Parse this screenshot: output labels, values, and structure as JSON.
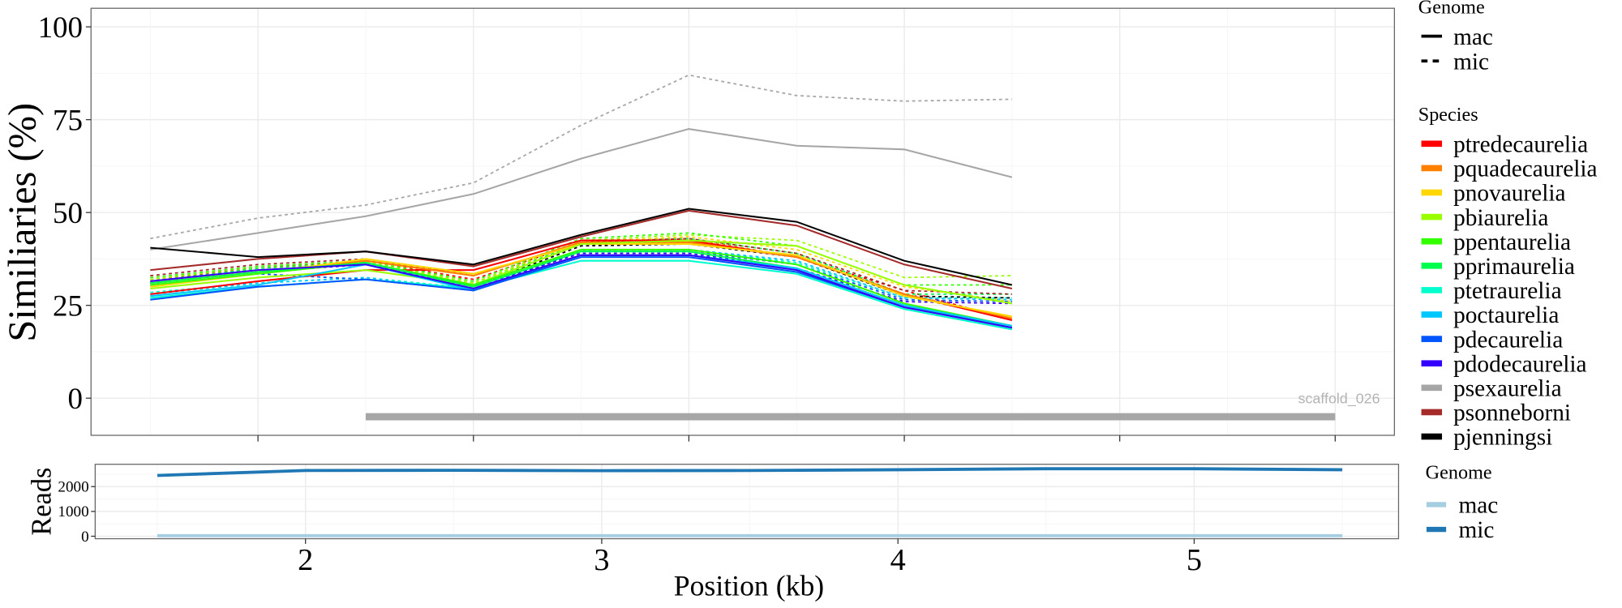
{
  "chart_data": [
    {
      "type": "line",
      "title": "",
      "xlabel": "",
      "ylabel": "Similiaries (%)",
      "ylim": [
        -10,
        105
      ],
      "xlim": [
        0.45,
        12.55
      ],
      "yticks": [
        "0",
        "25",
        "50",
        "75",
        "100"
      ],
      "ytick_values": [
        0,
        25,
        50,
        75,
        100
      ],
      "xtick_values": [
        2,
        4,
        6,
        8,
        10,
        12
      ],
      "grid": true,
      "x": [
        1,
        2,
        3,
        4,
        5,
        6,
        7,
        8,
        9
      ],
      "annotation": {
        "text": "scaffold_026",
        "bar_from": 3,
        "bar_to": 12,
        "bar_y": -5,
        "color": "#A6A6A6"
      },
      "species": [
        {
          "name": "ptredecaurelia",
          "color": "#FF0000",
          "mac": [
            28,
            31.5,
            34.5,
            34.5,
            42.5,
            42.5,
            38,
            28,
            21
          ],
          "mic": [
            32,
            35,
            37,
            32,
            42,
            42,
            38,
            29,
            21
          ]
        },
        {
          "name": "pquadecaurelia",
          "color": "#FF7F00",
          "mac": [
            31,
            34,
            37,
            33,
            42,
            42,
            38,
            28,
            21.5
          ],
          "mic": [
            31.5,
            35,
            36.5,
            31,
            42.5,
            43,
            38,
            27.5,
            21.5
          ]
        },
        {
          "name": "pnovaurelia",
          "color": "#FFD700",
          "mac": [
            30,
            33.5,
            37.5,
            33.5,
            41.5,
            41.5,
            38.5,
            27.5,
            22
          ],
          "mic": [
            31,
            34.5,
            36.5,
            31,
            42,
            43.5,
            40,
            30,
            26
          ]
        },
        {
          "name": "pbiaurelia",
          "color": "#99FF00",
          "mac": [
            29.5,
            32.5,
            34.5,
            30.5,
            41.5,
            42.5,
            41,
            30.5,
            25.5
          ],
          "mic": [
            32,
            35.5,
            37,
            31,
            42.5,
            44,
            42.5,
            32.5,
            33
          ]
        },
        {
          "name": "ppentaurelia",
          "color": "#33FF00",
          "mac": [
            30.5,
            33.5,
            36.5,
            30.5,
            40,
            40,
            36,
            25.5,
            19.5
          ],
          "mic": [
            32.5,
            35.5,
            37,
            31.5,
            43,
            44.5,
            41,
            30.5,
            30.5
          ]
        },
        {
          "name": "pprimaurelia",
          "color": "#00FF4C",
          "mac": [
            31,
            34,
            36.5,
            30,
            39.5,
            39.5,
            35,
            25,
            19
          ],
          "mic": [
            31.5,
            35,
            36.5,
            30.5,
            42,
            43,
            39,
            28,
            28
          ]
        },
        {
          "name": "ptetraurelia",
          "color": "#00FFCC",
          "mac": [
            27,
            30,
            32,
            29.5,
            37,
            37,
            33.5,
            24,
            18.5
          ],
          "mic": [
            28.5,
            31,
            32.5,
            29.5,
            40,
            40,
            36.5,
            27,
            27
          ]
        },
        {
          "name": "poctaurelia",
          "color": "#00C8FF",
          "mac": [
            27.5,
            30.5,
            36,
            29,
            38.5,
            38.5,
            35,
            25,
            19.5
          ],
          "mic": [
            28,
            31,
            32.5,
            29,
            40,
            40,
            37,
            27,
            26.5
          ]
        },
        {
          "name": "pdecaurelia",
          "color": "#0055FF",
          "mac": [
            26.5,
            30,
            32,
            29,
            38,
            38,
            34,
            24.5,
            19
          ],
          "mic": [
            30.5,
            33.5,
            32,
            29,
            39.5,
            39.5,
            36,
            26.5,
            26
          ]
        },
        {
          "name": "pdodecaurelia",
          "color": "#3300FF",
          "mac": [
            31.5,
            34.5,
            36,
            29.5,
            38.5,
            38.5,
            34.5,
            24.5,
            19
          ],
          "mic": [
            31,
            34,
            36,
            30,
            39,
            39,
            35,
            26,
            25.5
          ]
        },
        {
          "name": "psexaurelia",
          "color": "#A6A6A6",
          "mac": [
            40,
            44.5,
            49,
            55,
            64.5,
            72.5,
            68,
            67,
            59.5
          ],
          "mic": [
            43,
            48.5,
            52,
            58,
            73.5,
            87,
            81.5,
            80,
            80.5
          ]
        },
        {
          "name": "psonneborni",
          "color": "#A52A2A",
          "mac": [
            34.5,
            37.5,
            39.5,
            35.5,
            43.5,
            50.5,
            46.5,
            36,
            29.5
          ],
          "mic": [
            33,
            36,
            37.5,
            33,
            42,
            43,
            39,
            29,
            28
          ]
        },
        {
          "name": "pjenningsi",
          "color": "#000000",
          "mac": [
            40.5,
            38,
            39.5,
            36,
            44,
            51,
            47.5,
            37,
            30.5
          ],
          "mic": [
            31,
            34,
            36.5,
            30,
            41,
            41.5,
            38,
            27.5,
            27
          ]
        }
      ],
      "legend_genome": {
        "title": "Genome",
        "items": [
          "mac",
          "mic"
        ]
      },
      "legend_species": {
        "title": "Species"
      }
    },
    {
      "type": "line",
      "xlabel": "Position (kb)",
      "ylabel": "Reads",
      "xlim": [
        1.29,
        5.69
      ],
      "ylim": [
        -100,
        2900
      ],
      "xticks": [
        "2",
        "3",
        "4",
        "5"
      ],
      "xtick_values": [
        2,
        3,
        4,
        5
      ],
      "yticks": [
        "0",
        "1000",
        "2000"
      ],
      "ytick_values": [
        0,
        1000,
        2000
      ],
      "grid": true,
      "x": [
        1.5,
        2,
        2.5,
        3,
        3.5,
        4,
        4.5,
        5,
        5.5
      ],
      "series": [
        {
          "name": "mac",
          "color": "#A6CEE3",
          "values": [
            20,
            20,
            20,
            20,
            20,
            20,
            20,
            20,
            20
          ]
        },
        {
          "name": "mic",
          "color": "#1F78B4",
          "values": [
            2450,
            2650,
            2660,
            2640,
            2650,
            2680,
            2720,
            2720,
            2680
          ]
        }
      ],
      "legend": {
        "title": "Genome",
        "items": [
          "mac",
          "mic"
        ]
      }
    }
  ]
}
